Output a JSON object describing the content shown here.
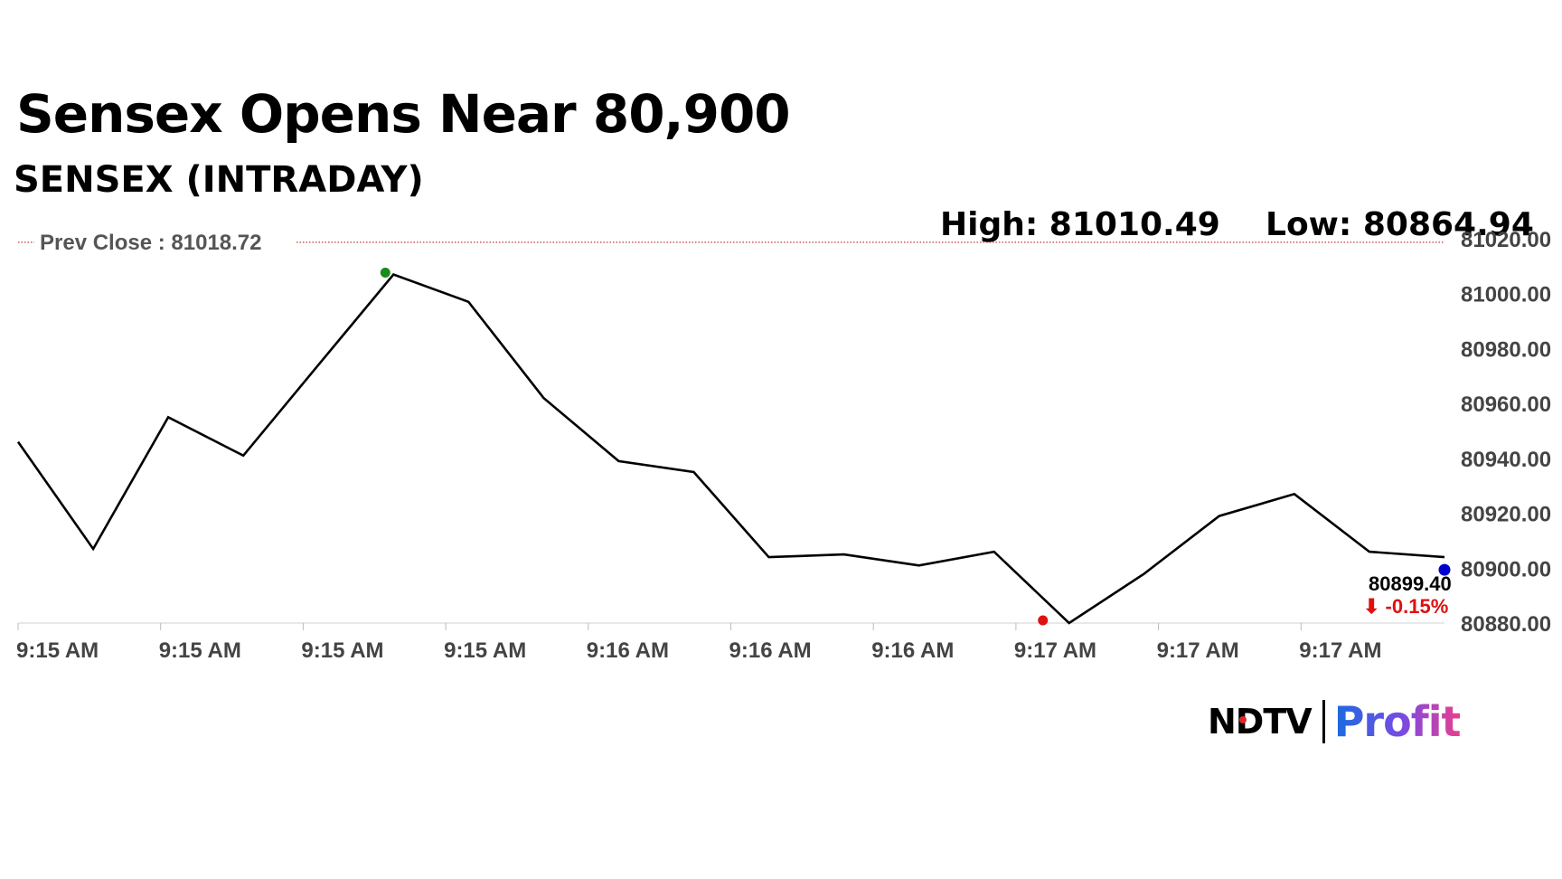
{
  "headline": "Sensex Opens Near 80,900",
  "subheadline": "SENSEX (INTRADAY)",
  "stats": {
    "high": "High: 81010.49",
    "low": "Low: 80864.94"
  },
  "brand": {
    "ndtv": "NDTV",
    "profit": "Profit"
  },
  "colors": {
    "line": "#000000",
    "prev_close_line": "#c0392b",
    "high_marker": "#1a8a1a",
    "low_marker": "#e01010",
    "last_marker": "#0000cc",
    "change_negative": "#e01010",
    "axis_text": "#444444"
  },
  "chart_data": {
    "type": "line",
    "title": "SENSEX (INTRADAY)",
    "prev_close_label": "Prev Close : 81018.72",
    "prev_close": 81018.72,
    "ylim": [
      80880,
      81020
    ],
    "yticks": [
      81020,
      81000,
      80980,
      80960,
      80940,
      80920,
      80900,
      80880
    ],
    "ytick_labels": [
      "81020.00",
      "81000.00",
      "80980.00",
      "80960.00",
      "80940.00",
      "80920.00",
      "80900.00",
      "80880.00"
    ],
    "xtick_labels": [
      "9:15 AM",
      "9:15 AM",
      "9:15 AM",
      "9:15 AM",
      "9:16 AM",
      "9:16 AM",
      "9:16 AM",
      "9:17 AM",
      "9:17 AM",
      "9:17 AM"
    ],
    "series": [
      {
        "values": [
          80946,
          80907,
          80955,
          80941,
          80974,
          81007,
          80997,
          80962,
          80939,
          80935,
          80904,
          80905,
          80901,
          80906,
          80880,
          80898,
          80919,
          80927,
          80906,
          80904
        ]
      }
    ],
    "markers": {
      "high": 81007,
      "low": 80881,
      "last": 80899.4
    },
    "last_value_label": "80899.40",
    "change_label": "⬇ -0.15%"
  }
}
